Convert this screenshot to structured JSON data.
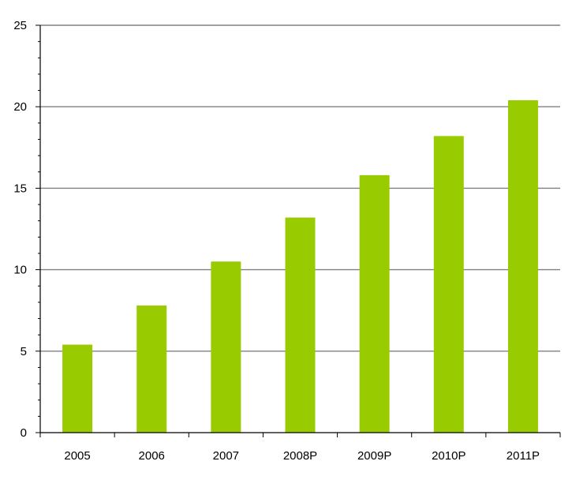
{
  "chart_data": {
    "type": "bar",
    "title": "",
    "xlabel": "",
    "ylabel": "",
    "categories": [
      "2005",
      "2006",
      "2007",
      "2008P",
      "2009P",
      "2010P",
      "2011P"
    ],
    "values": [
      5.4,
      7.8,
      10.5,
      13.2,
      15.8,
      18.2,
      20.4
    ],
    "ylim": [
      0,
      25
    ],
    "yticks": [
      0,
      5,
      10,
      15,
      20,
      25
    ],
    "grid": true,
    "legend": "none",
    "bar_color": "#99cc00",
    "grid_color": "#808080"
  }
}
